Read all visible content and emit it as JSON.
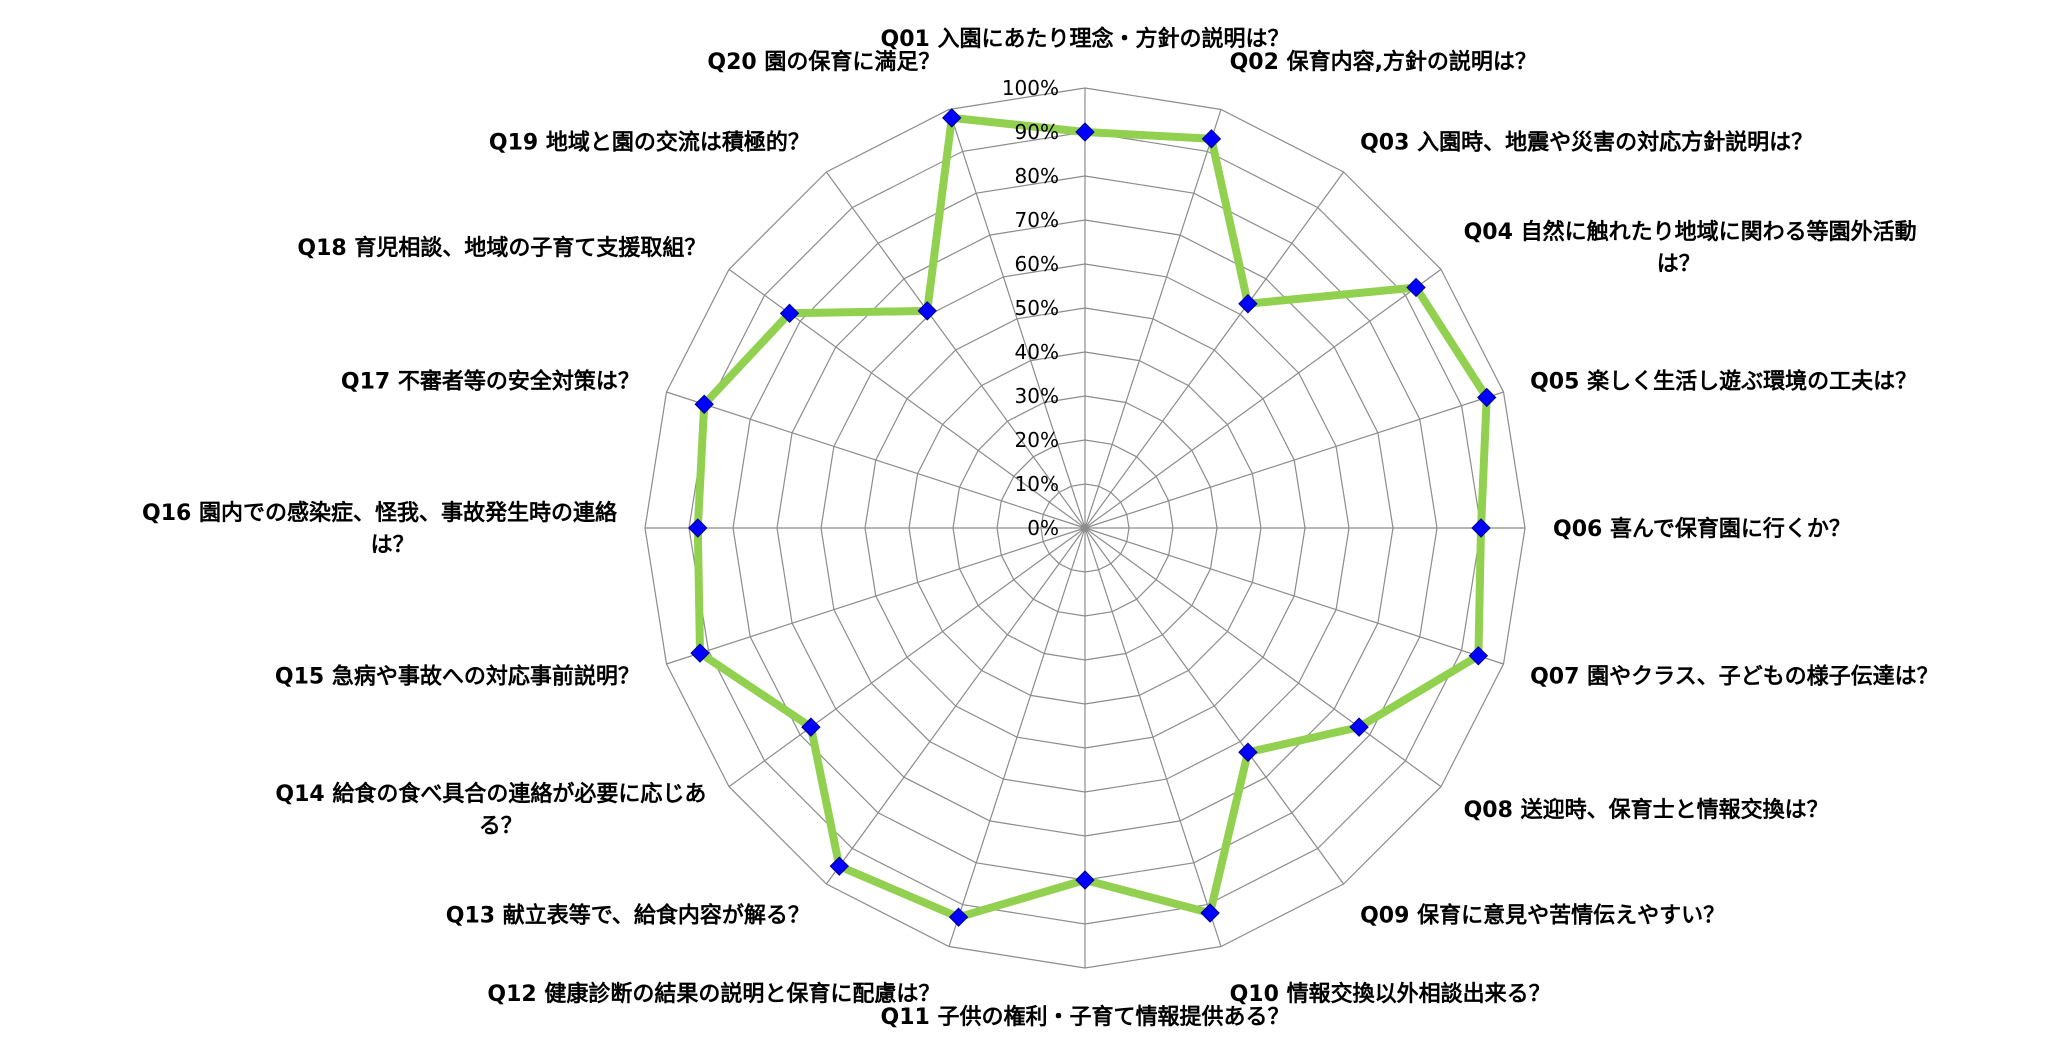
{
  "chart_data": {
    "type": "radar",
    "categories": [
      "Q01 入園にあたり理念・方針の説明は？",
      "Q02 保育内容,方針の説明は？",
      "Q03 入園時、地震や災害の対応方針説明は？",
      "Q04 自然に触れたり地域に関わる等園外活動は？",
      "Q05 楽しく生活し遊ぶ環境の工夫は？",
      "Q06 喜んで保育園に行くか？",
      "Q07 園やクラス、子どもの様子伝達は？",
      "Q08 送迎時、保育士と情報交換は？",
      "Q09 保育に意見や苦情伝えやすい？",
      "Q10 情報交換以外相談出来る？",
      "Q11 子供の権利・子育て情報提供ある？",
      "Q12 健康診断の結果の説明と保育に配慮は？",
      "Q13 献立表等で、給食内容が解る？",
      "Q14 給食の食べ具合の連絡が必要に応じある？",
      "Q15 急病や事故への対応事前説明？",
      "Q16 園内での感染症、怪我、事故発生時の連絡は？",
      "Q17 不審者等の安全対策は？",
      "Q18 育児相談、地域の子育て支援取組？",
      "Q19 地域と園の交流は積極的？",
      "Q20 園の保育に満足？"
    ],
    "category_label_lines": [
      [
        "Q01  入園にあたり理念・方針の説明は？"
      ],
      [
        "Q02  保育内容,方針の説明は？"
      ],
      [
        "Q03  入園時、地震や災害の対応方針説明は？"
      ],
      [
        "Q04  自然に触れたり地域に関わる等園外活動",
        "は？"
      ],
      [
        "Q05  楽しく生活し遊ぶ環境の工夫は？"
      ],
      [
        "Q06  喜んで保育園に行くか？"
      ],
      [
        "Q07  園やクラス、子どもの様子伝達は？"
      ],
      [
        "Q08  送迎時、保育士と情報交換は？"
      ],
      [
        "Q09  保育に意見や苦情伝えやすい？"
      ],
      [
        "Q10 情報交換以外相談出来る？"
      ],
      [
        "Q11  子供の権利・子育て情報提供ある？"
      ],
      [
        "Q12  健康診断の結果の説明と保育に配慮は？"
      ],
      [
        "Q13  献立表等で、給食内容が解る？"
      ],
      [
        "Q14  給食の食べ具合の連絡が必要に応じあ",
        "る？"
      ],
      [
        "Q15  急病や事故への対応事前説明？"
      ],
      [
        "Q16  園内での感染症、怪我、事故発生時の連絡",
        "は？"
      ],
      [
        "Q17  不審者等の安全対策は？"
      ],
      [
        "Q18  育児相談、地域の子育て支援取組？"
      ],
      [
        "Q19  地域と園の交流は積極的？"
      ],
      [
        "Q20  園の保育に満足？"
      ]
    ],
    "values": [
      0.9,
      0.93,
      0.63,
      0.93,
      0.96,
      0.9,
      0.94,
      0.77,
      0.63,
      0.92,
      0.8,
      0.93,
      0.95,
      0.77,
      0.92,
      0.88,
      0.91,
      0.83,
      0.61,
      0.98
    ],
    "radial_ticks": [
      "0%",
      "10%",
      "20%",
      "30%",
      "40%",
      "50%",
      "60%",
      "70%",
      "80%",
      "90%",
      "100%"
    ],
    "ylim": [
      0,
      1
    ],
    "grid": true,
    "legend": "none",
    "colors": {
      "line": "#92D050",
      "marker": "#0000FF",
      "marker_edge": "#00008B",
      "grid": "#8C8C8C"
    }
  }
}
